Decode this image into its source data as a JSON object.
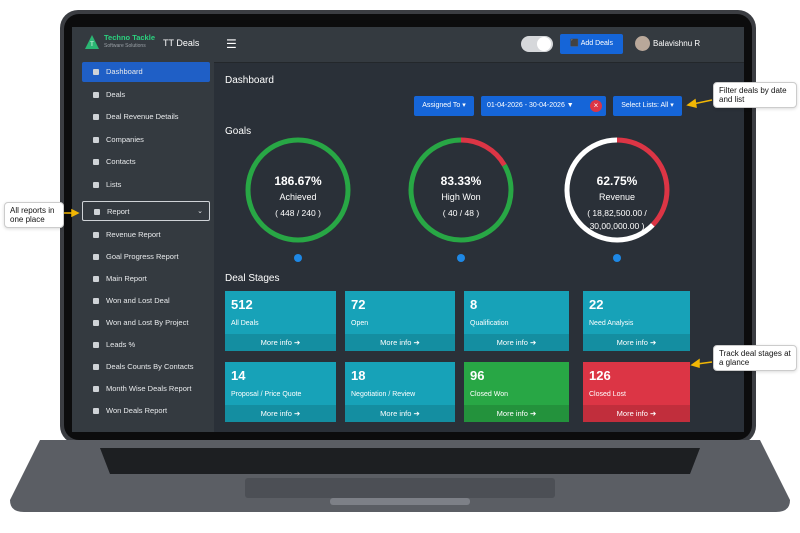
{
  "header": {
    "brand": "Techno Tackle",
    "brand_sub": "Software Solutions",
    "app": "TT Deals",
    "add_button": "Add Deals",
    "user": "Balavishnu R"
  },
  "sidebar": {
    "items": [
      "Dashboard",
      "Deals",
      "Deal Revenue Details",
      "Companies",
      "Contacts",
      "Lists"
    ],
    "report": "Report",
    "report_items": [
      "Revenue Report",
      "Goal Progress Report",
      "Main Report",
      "Won and Lost Deal",
      "Won and Lost By Project",
      "Leads %",
      "Deals Counts By Contacts",
      "Month Wise Deals Report",
      "Won Deals Report"
    ]
  },
  "page_title": "Dashboard",
  "filters": {
    "assigned": "Assigned To",
    "date_range": "01-04-2026 - 30-04-2026",
    "lists": "Select Lists: All"
  },
  "goals": {
    "title": "Goals",
    "items": [
      {
        "value": 186.67,
        "value_label": "186.67%",
        "name": "Achieved",
        "detail": "( 448 / 240 )",
        "color": "#28a745"
      },
      {
        "value": 83.33,
        "value_label": "83.33%",
        "name": "High Won",
        "detail": "( 40 / 48 )",
        "color": "#28a745"
      },
      {
        "value": 62.75,
        "value_label": "62.75%",
        "name": "Revenue",
        "detail": "( 18,82,500.00 / 30,00,000.00 )",
        "color": "#ffffff"
      }
    ]
  },
  "deal_stages": {
    "title": "Deal Stages",
    "more": "More info",
    "cards": [
      {
        "count": 512,
        "name": "All Deals",
        "color": "#17a2b8"
      },
      {
        "count": 72,
        "name": "Open",
        "color": "#17a2b8"
      },
      {
        "count": 8,
        "name": "Qualification",
        "color": "#17a2b8"
      },
      {
        "count": 22,
        "name": "Need Analysis",
        "color": "#17a2b8"
      },
      {
        "count": 14,
        "name": "Proposal / Price Quote",
        "color": "#17a2b8"
      },
      {
        "count": 18,
        "name": "Negotiation / Review",
        "color": "#17a2b8"
      },
      {
        "count": 96,
        "name": "Closed Won",
        "color": "#28a745"
      },
      {
        "count": 126,
        "name": "Closed Lost",
        "color": "#dc3545"
      }
    ]
  },
  "callouts": [
    "All reports in one place",
    "Filter deals by date and list",
    "Track deal stages at a glance"
  ]
}
